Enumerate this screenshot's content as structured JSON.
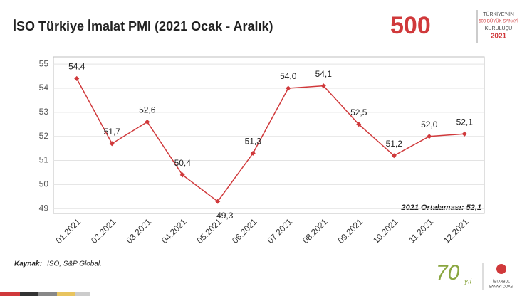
{
  "chart_data": {
    "type": "line",
    "title": "İSO Türkiye İmalat PMI (2021 Ocak  - Aralık)",
    "categories": [
      "01.2021",
      "02.2021",
      "03.2021",
      "04.2021",
      "05.2021",
      "06.2021",
      "07.2021",
      "08.2021",
      "09.2021",
      "10.2021",
      "11.2021",
      "12.2021"
    ],
    "values": [
      54.4,
      51.7,
      52.6,
      50.4,
      49.3,
      51.3,
      54.0,
      54.1,
      52.5,
      51.2,
      52.0,
      52.1
    ],
    "value_labels": [
      "54,4",
      "51,7",
      "52,6",
      "50,4",
      "49,3",
      "51,3",
      "54,0",
      "54,1",
      "52,5",
      "51,2",
      "52,0",
      "52,1"
    ],
    "color": "#d0393b",
    "ylim": [
      48.8,
      55.3
    ],
    "yticks": [
      49,
      50,
      51,
      52,
      53,
      54,
      55
    ],
    "grid": true,
    "annotation": "2021 Ortalaması: 52,1"
  },
  "source": {
    "label": "Kaynak:",
    "text": "İSO, S&P Global."
  },
  "logos": {
    "anniversary": "500",
    "badge": [
      "TÜRKİYE'NİN",
      "500 BÜYÜK SANAYİ",
      "KURULUŞU",
      "2021"
    ],
    "seventy": "70",
    "seventy_suffix": "yıl",
    "iso": [
      "İSTANBUL",
      "SANAYİ ODASI"
    ]
  }
}
